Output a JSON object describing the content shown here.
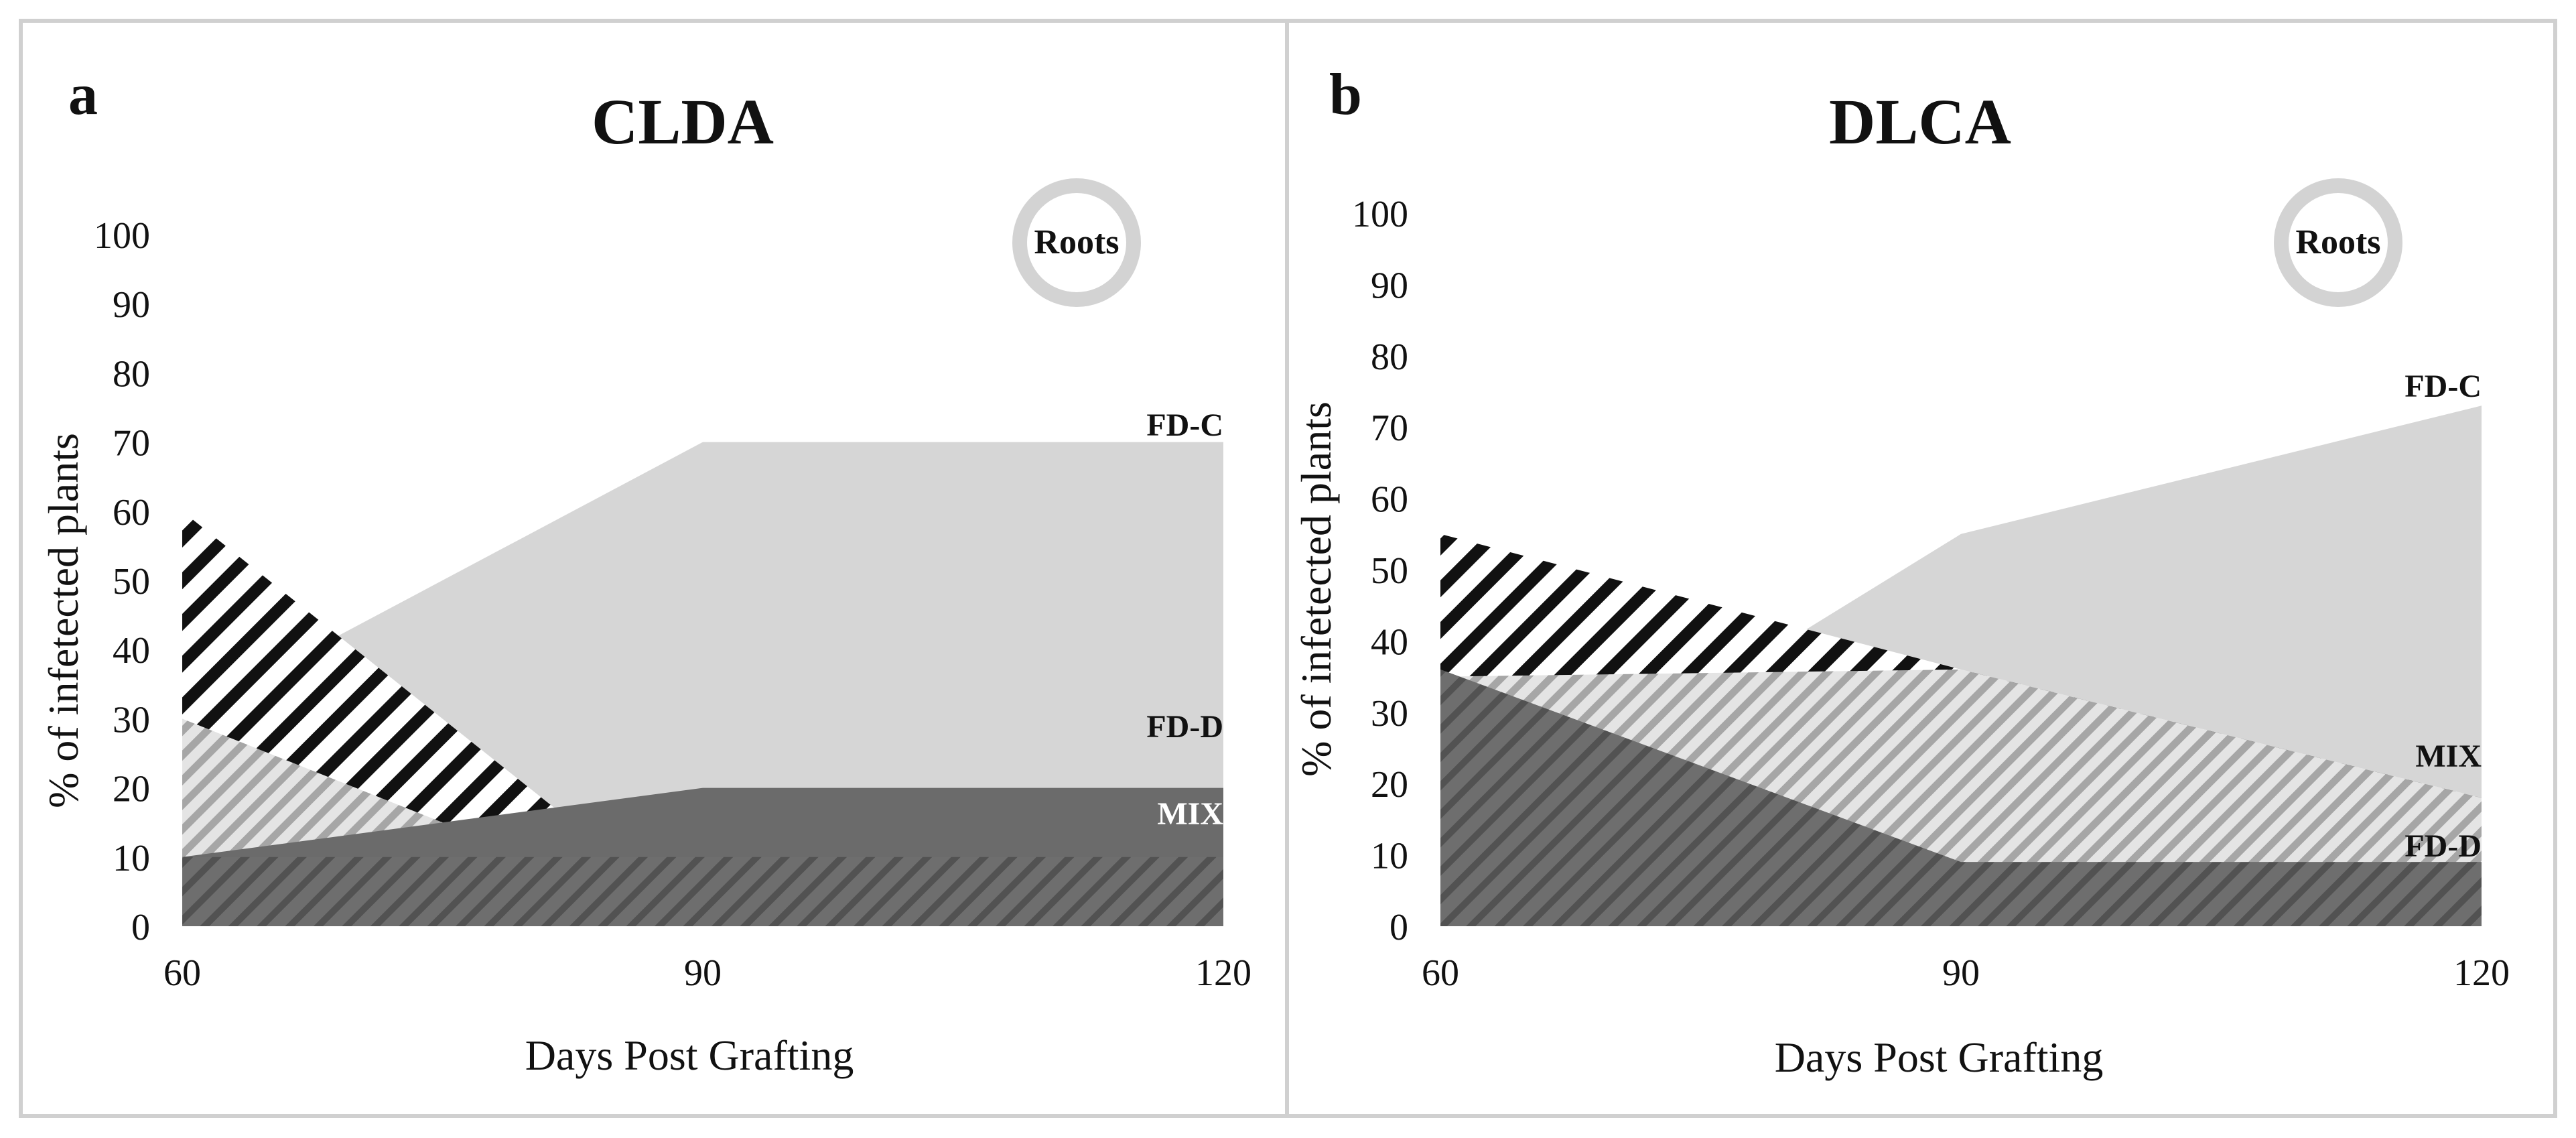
{
  "chart_data": [
    {
      "type": "area",
      "panel_letter": "a",
      "title": "CLDA",
      "xlabel": "Days Post Grafting",
      "ylabel": "% of infetected plants",
      "x": [
        60,
        90,
        120
      ],
      "xticks": [
        60,
        90,
        120
      ],
      "yticks": [
        0,
        10,
        20,
        30,
        40,
        50,
        60,
        70,
        80,
        90,
        100
      ],
      "ylim": [
        0,
        100
      ],
      "badge": "Roots",
      "series": [
        {
          "label": "FD-C",
          "values": [
            30,
            70,
            70
          ],
          "pattern": "fill-light"
        },
        {
          "label": "",
          "values": [
            60,
            0,
            0
          ],
          "pattern": "stripe-black"
        },
        {
          "label": "",
          "values": [
            30,
            0,
            0
          ],
          "pattern": "stripe-light"
        },
        {
          "label": "FD-D",
          "values": [
            10,
            20,
            20
          ],
          "pattern": "fill-dark"
        },
        {
          "label": "MIX",
          "values": [
            10,
            10,
            10
          ],
          "pattern": "stripe-dark"
        }
      ],
      "colors": {
        "light": "#d6d6d6",
        "dark": "#6b6b6b",
        "black": "#111111"
      }
    },
    {
      "type": "area",
      "panel_letter": "b",
      "title": "DLCA",
      "xlabel": "Days Post Grafting",
      "ylabel": "% of infetected plants",
      "x": [
        60,
        90,
        120
      ],
      "xticks": [
        60,
        90,
        120
      ],
      "yticks": [
        0,
        10,
        20,
        30,
        40,
        50,
        60,
        70,
        80,
        90,
        100
      ],
      "ylim": [
        0,
        100
      ],
      "badge": "Roots",
      "series": [
        {
          "label": "FD-C",
          "values": [
            10,
            55,
            73
          ],
          "pattern": "fill-light"
        },
        {
          "label": "",
          "values": [
            55,
            36,
            18
          ],
          "pattern": "stripe-black"
        },
        {
          "label": "MIX",
          "values": [
            35,
            36,
            18
          ],
          "pattern": "stripe-light"
        },
        {
          "label": "FD-D",
          "values": [
            36,
            9,
            9
          ],
          "pattern": "fill-dark"
        },
        {
          "label": "",
          "values": [
            36,
            9,
            9
          ],
          "pattern": "stripe-dark"
        }
      ],
      "colors": {
        "light": "#d6d6d6",
        "dark": "#6b6b6b",
        "black": "#111111"
      }
    }
  ]
}
